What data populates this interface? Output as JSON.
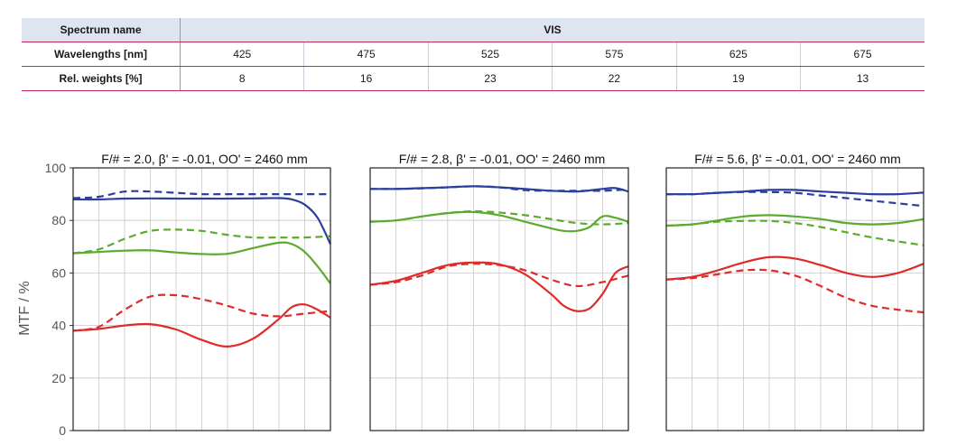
{
  "table": {
    "spectrum_label": "Spectrum name",
    "spectrum_value": "VIS",
    "wavelengths_label": "Wavelengths [nm]",
    "wavelengths": [
      "425",
      "475",
      "525",
      "575",
      "625",
      "675"
    ],
    "weights_label": "Rel. weights [%]",
    "weights": [
      "8",
      "16",
      "23",
      "22",
      "19",
      "13"
    ]
  },
  "chart_data": [
    {
      "type": "line",
      "title": "F/# = 2.0, β' = -0.01, OO' = 2460 mm",
      "ylabel": "MTF / %",
      "ylim": [
        0,
        100
      ],
      "yticks": [
        "0",
        "20",
        "40",
        "60",
        "80",
        "100"
      ],
      "xlim": [
        0,
        1
      ],
      "grid": true,
      "series": [
        {
          "color": "#2b3f9e",
          "dash": false,
          "x": [
            0,
            0.1,
            0.2,
            0.3,
            0.4,
            0.5,
            0.6,
            0.7,
            0.8,
            0.85,
            0.9,
            0.95,
            1.0
          ],
          "values": [
            88,
            88,
            88.3,
            88.4,
            88.3,
            88.3,
            88.3,
            88.4,
            88.5,
            88,
            86,
            81,
            71
          ]
        },
        {
          "color": "#2b3f9e",
          "dash": true,
          "x": [
            0,
            0.1,
            0.2,
            0.3,
            0.4,
            0.5,
            0.6,
            0.7,
            0.8,
            0.9,
            1.0
          ],
          "values": [
            88.5,
            89,
            91,
            91,
            90.5,
            90,
            90,
            90,
            90,
            90,
            90
          ]
        },
        {
          "color": "#5aab2e",
          "dash": false,
          "x": [
            0,
            0.1,
            0.2,
            0.3,
            0.4,
            0.5,
            0.6,
            0.7,
            0.8,
            0.85,
            0.9,
            0.95,
            1.0
          ],
          "values": [
            67.5,
            68,
            68.5,
            68.6,
            67.8,
            67.2,
            67.3,
            69.5,
            71.5,
            71,
            68,
            62.5,
            56
          ]
        },
        {
          "color": "#5aab2e",
          "dash": true,
          "x": [
            0,
            0.1,
            0.2,
            0.3,
            0.4,
            0.5,
            0.6,
            0.7,
            0.8,
            0.9,
            1.0
          ],
          "values": [
            67.5,
            69,
            73,
            76,
            76.5,
            76,
            74.5,
            73.5,
            73.5,
            73.5,
            74
          ]
        },
        {
          "color": "#e02b2b",
          "dash": false,
          "x": [
            0,
            0.1,
            0.2,
            0.3,
            0.4,
            0.5,
            0.6,
            0.7,
            0.8,
            0.85,
            0.9,
            0.95,
            1.0
          ],
          "values": [
            38,
            38.7,
            40,
            40.5,
            38.5,
            34.5,
            32,
            35,
            42.5,
            47,
            48,
            46,
            43
          ]
        },
        {
          "color": "#e02b2b",
          "dash": true,
          "x": [
            0,
            0.1,
            0.2,
            0.3,
            0.4,
            0.5,
            0.6,
            0.7,
            0.8,
            0.9,
            1.0
          ],
          "values": [
            38,
            39.5,
            46,
            51,
            51.5,
            50,
            47.5,
            44.5,
            43.5,
            44.5,
            45.5
          ]
        }
      ]
    },
    {
      "type": "line",
      "title": "F/# = 2.8, β' = -0.01, OO' = 2460 mm",
      "ylim": [
        0,
        100
      ],
      "xlim": [
        0,
        1
      ],
      "grid": true,
      "series": [
        {
          "color": "#2b3f9e",
          "dash": false,
          "x": [
            0,
            0.1,
            0.2,
            0.3,
            0.4,
            0.5,
            0.6,
            0.7,
            0.8,
            0.9,
            0.95,
            1.0
          ],
          "values": [
            92,
            92,
            92.3,
            92.6,
            93,
            92.6,
            92,
            91.3,
            91,
            92,
            92.3,
            91
          ]
        },
        {
          "color": "#2b3f9e",
          "dash": true,
          "x": [
            0,
            0.1,
            0.2,
            0.3,
            0.4,
            0.5,
            0.6,
            0.7,
            0.8,
            0.9,
            1.0
          ],
          "values": [
            92,
            92,
            92.2,
            92.6,
            93,
            92.6,
            91.5,
            91.3,
            91.3,
            91.3,
            91.8
          ]
        },
        {
          "color": "#5aab2e",
          "dash": false,
          "x": [
            0,
            0.1,
            0.2,
            0.3,
            0.4,
            0.5,
            0.6,
            0.7,
            0.75,
            0.8,
            0.85,
            0.9,
            0.95,
            1.0
          ],
          "values": [
            79.5,
            80,
            81.5,
            82.8,
            83.2,
            82,
            79.5,
            77,
            76,
            76,
            77.5,
            81.5,
            81,
            79.5
          ]
        },
        {
          "color": "#5aab2e",
          "dash": true,
          "x": [
            0,
            0.1,
            0.2,
            0.3,
            0.4,
            0.5,
            0.6,
            0.7,
            0.8,
            0.9,
            1.0
          ],
          "values": [
            79.5,
            80,
            81.5,
            82.8,
            83.5,
            83,
            82,
            80.5,
            79,
            78.5,
            79
          ]
        },
        {
          "color": "#e02b2b",
          "dash": false,
          "x": [
            0,
            0.1,
            0.2,
            0.3,
            0.4,
            0.5,
            0.6,
            0.7,
            0.75,
            0.8,
            0.85,
            0.9,
            0.95,
            1.0
          ],
          "values": [
            55.5,
            57,
            60,
            63,
            64,
            63.3,
            59.5,
            52,
            47.5,
            45.5,
            46.5,
            52,
            60,
            62.5
          ]
        },
        {
          "color": "#e02b2b",
          "dash": true,
          "x": [
            0,
            0.1,
            0.2,
            0.3,
            0.4,
            0.5,
            0.6,
            0.7,
            0.8,
            0.9,
            1.0
          ],
          "values": [
            55.5,
            56.5,
            59,
            62.5,
            63.5,
            63,
            61,
            57.5,
            55,
            56.5,
            59
          ]
        }
      ]
    },
    {
      "type": "line",
      "title": "F/# = 5.6, β' = -0.01, OO' = 2460 mm",
      "ylim": [
        0,
        100
      ],
      "xlim": [
        0,
        1
      ],
      "grid": true,
      "series": [
        {
          "color": "#2b3f9e",
          "dash": false,
          "x": [
            0,
            0.1,
            0.2,
            0.3,
            0.4,
            0.5,
            0.6,
            0.7,
            0.8,
            0.9,
            1.0
          ],
          "values": [
            90,
            90,
            90.5,
            91,
            91.6,
            91.6,
            91,
            90.5,
            90,
            90,
            90.6
          ]
        },
        {
          "color": "#2b3f9e",
          "dash": true,
          "x": [
            0,
            0.1,
            0.2,
            0.3,
            0.4,
            0.5,
            0.6,
            0.7,
            0.8,
            0.9,
            1.0
          ],
          "values": [
            90,
            90,
            90.5,
            90.8,
            90.8,
            90.5,
            89.5,
            88.5,
            87.5,
            86.5,
            85.5
          ]
        },
        {
          "color": "#5aab2e",
          "dash": false,
          "x": [
            0,
            0.1,
            0.2,
            0.3,
            0.4,
            0.5,
            0.6,
            0.7,
            0.8,
            0.9,
            1.0
          ],
          "values": [
            78,
            78.5,
            80,
            81.5,
            82,
            81.5,
            80.5,
            79,
            78.5,
            79,
            80.5
          ]
        },
        {
          "color": "#5aab2e",
          "dash": true,
          "x": [
            0,
            0.1,
            0.2,
            0.3,
            0.4,
            0.5,
            0.6,
            0.7,
            0.8,
            0.9,
            1.0
          ],
          "values": [
            78,
            78.5,
            79.5,
            79.8,
            79.8,
            79,
            77.5,
            75.5,
            73.5,
            72,
            70.5
          ]
        },
        {
          "color": "#e02b2b",
          "dash": false,
          "x": [
            0,
            0.1,
            0.2,
            0.3,
            0.4,
            0.5,
            0.6,
            0.7,
            0.8,
            0.9,
            1.0
          ],
          "values": [
            57.5,
            58.5,
            61,
            64,
            66,
            65.5,
            63,
            60,
            58.5,
            60,
            63.5
          ]
        },
        {
          "color": "#e02b2b",
          "dash": true,
          "x": [
            0,
            0.1,
            0.2,
            0.3,
            0.4,
            0.5,
            0.6,
            0.7,
            0.8,
            0.9,
            1.0
          ],
          "values": [
            57.5,
            58,
            59.5,
            61,
            61,
            59,
            55,
            50.5,
            47.5,
            46,
            45
          ]
        }
      ]
    }
  ]
}
